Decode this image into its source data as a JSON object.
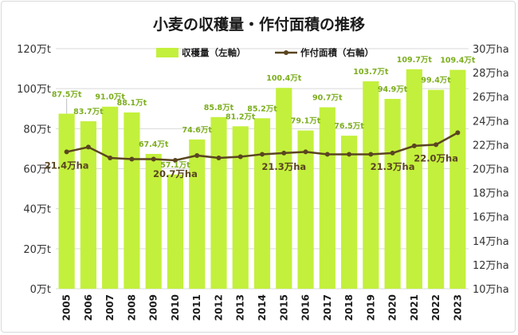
{
  "chart_data": {
    "type": "bar+line",
    "title": "小麦の収穫量・作付面積の推移",
    "categories": [
      "2005",
      "2006",
      "2007",
      "2008",
      "2009",
      "2010",
      "2011",
      "2012",
      "2013",
      "2014",
      "2015",
      "2016",
      "2017",
      "2018",
      "2019",
      "2020",
      "2021",
      "2022",
      "2023"
    ],
    "series": [
      {
        "name": "収穫量（左軸）",
        "type": "bar",
        "axis": "left",
        "color": "#c3f03c",
        "values": [
          87.5,
          83.7,
          91.0,
          88.1,
          67.4,
          57.1,
          74.6,
          85.8,
          81.2,
          85.2,
          100.4,
          79.1,
          90.7,
          76.5,
          103.7,
          94.9,
          109.7,
          99.4,
          109.4
        ],
        "labels": [
          "87.5万t",
          "83.7万t",
          "91.0万t",
          "88.1万t",
          "67.4万t",
          "57.1万t",
          "74.6万t",
          "85.8万t",
          "81.2万t",
          "85.2万t",
          "100.4万t",
          "79.1万t",
          "90.7万t",
          "76.5万t",
          "103.7万t",
          "94.9万t",
          "109.7万t",
          "99.4万t",
          "109.4万t"
        ]
      },
      {
        "name": "作付面積（右軸）",
        "type": "line",
        "axis": "right",
        "color": "#5a4520",
        "values": [
          21.4,
          21.8,
          20.9,
          20.8,
          20.8,
          20.7,
          21.1,
          20.9,
          21.0,
          21.2,
          21.3,
          21.4,
          21.2,
          21.2,
          21.2,
          21.3,
          21.9,
          22.0,
          23.0
        ],
        "labels": [
          {
            "index": 0,
            "text": "21.4万ha"
          },
          {
            "index": 5,
            "text": "20.7万ha"
          },
          {
            "index": 10,
            "text": "21.3万ha"
          },
          {
            "index": 15,
            "text": "21.3万ha"
          },
          {
            "index": 17,
            "text": "22.0万ha"
          }
        ]
      }
    ],
    "y_left": {
      "min": 0,
      "max": 120,
      "ticks": [
        0,
        20,
        40,
        60,
        80,
        100,
        120
      ],
      "tick_labels": [
        "0万t",
        "20万t",
        "40万t",
        "60万t",
        "80万t",
        "100万t",
        "120万t"
      ]
    },
    "y_right": {
      "min": 10,
      "max": 30,
      "ticks": [
        10,
        12,
        14,
        16,
        18,
        20,
        22,
        24,
        26,
        28,
        30
      ],
      "tick_labels": [
        "10万ha",
        "12万ha",
        "14万ha",
        "16万ha",
        "18万ha",
        "20万ha",
        "22万ha",
        "24万ha",
        "26万ha",
        "28万ha",
        "30万ha"
      ]
    },
    "grid": true,
    "legend": {
      "position": "top-center"
    }
  }
}
